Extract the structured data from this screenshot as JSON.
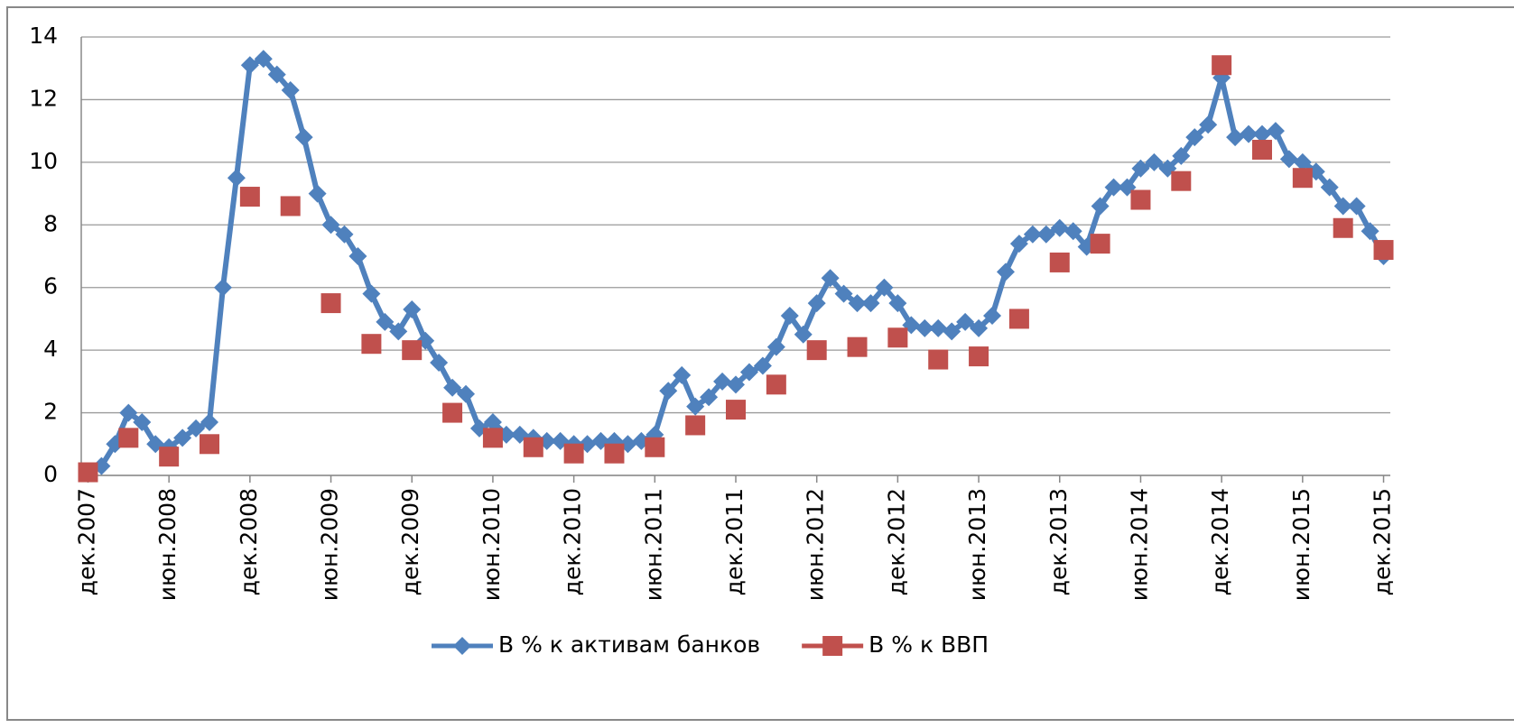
{
  "chart_data": {
    "type": "line",
    "categories": [
      "дек.2007",
      null,
      null,
      null,
      null,
      null,
      "июн.2008",
      null,
      null,
      null,
      null,
      null,
      "дек.2008",
      null,
      null,
      null,
      null,
      null,
      "июн.2009",
      null,
      null,
      null,
      null,
      null,
      "дек.2009",
      null,
      null,
      null,
      null,
      null,
      "июн.2010",
      null,
      null,
      null,
      null,
      null,
      "дек.2010",
      null,
      null,
      null,
      null,
      null,
      "июн.2011",
      null,
      null,
      null,
      null,
      null,
      "дек.2011",
      null,
      null,
      null,
      null,
      null,
      "июн.2012",
      null,
      null,
      null,
      null,
      null,
      "дек.2012",
      null,
      null,
      null,
      null,
      null,
      "июн.2013",
      null,
      null,
      null,
      null,
      null,
      "дек.2013",
      null,
      null,
      null,
      null,
      null,
      "июн.2014",
      null,
      null,
      null,
      null,
      null,
      "дек.2014",
      null,
      null,
      null,
      null,
      null,
      "июн.2015",
      null,
      null,
      null,
      null,
      null,
      "дек.2015"
    ],
    "series": [
      {
        "name": "В % к активам банков",
        "color": "#4f81bd",
        "marker": "diamond",
        "show_line": true,
        "values": [
          0.1,
          0.3,
          1.0,
          2.0,
          1.7,
          1.0,
          0.9,
          1.2,
          1.5,
          1.7,
          6.0,
          9.5,
          13.1,
          13.3,
          12.8,
          12.3,
          10.8,
          9.0,
          8.0,
          7.7,
          7.0,
          5.8,
          4.9,
          4.6,
          5.3,
          4.3,
          3.6,
          2.8,
          2.6,
          1.5,
          1.7,
          1.3,
          1.3,
          1.2,
          1.1,
          1.1,
          1.0,
          1.0,
          1.1,
          1.1,
          1.0,
          1.1,
          1.3,
          2.7,
          3.2,
          2.2,
          2.5,
          3.0,
          2.9,
          3.3,
          3.5,
          4.1,
          5.1,
          4.5,
          5.5,
          6.3,
          5.8,
          5.5,
          5.5,
          6.0,
          5.5,
          4.8,
          4.7,
          4.7,
          4.6,
          4.9,
          4.7,
          5.1,
          6.5,
          7.4,
          7.7,
          7.7,
          7.9,
          7.8,
          7.3,
          8.6,
          9.2,
          9.2,
          9.8,
          10.0,
          9.8,
          10.2,
          10.8,
          11.2,
          12.7,
          10.8,
          10.9,
          10.9,
          11.0,
          10.1,
          10.0,
          9.7,
          9.2,
          8.6,
          8.6,
          7.8,
          7.0
        ]
      },
      {
        "name": "В % к ВВП",
        "color": "#c0504d",
        "marker": "square",
        "show_line": false,
        "values": [
          0.1,
          null,
          null,
          1.2,
          null,
          null,
          0.6,
          null,
          null,
          1.0,
          null,
          null,
          8.9,
          null,
          null,
          8.6,
          null,
          null,
          5.5,
          null,
          null,
          4.2,
          null,
          null,
          4.0,
          null,
          null,
          2.0,
          null,
          null,
          1.2,
          null,
          null,
          0.9,
          null,
          null,
          0.7,
          null,
          null,
          0.7,
          null,
          null,
          0.9,
          null,
          null,
          1.6,
          null,
          null,
          2.1,
          null,
          null,
          2.9,
          null,
          null,
          4.0,
          null,
          null,
          4.1,
          null,
          null,
          4.4,
          null,
          null,
          3.7,
          null,
          null,
          3.8,
          null,
          null,
          5.0,
          null,
          null,
          6.8,
          null,
          null,
          7.4,
          null,
          null,
          8.8,
          null,
          null,
          9.4,
          null,
          null,
          13.1,
          null,
          null,
          10.4,
          null,
          null,
          9.5,
          null,
          null,
          7.9,
          null,
          null,
          7.2
        ]
      }
    ],
    "ylim": [
      0,
      14
    ],
    "yticks": [
      0,
      2,
      4,
      6,
      8,
      10,
      12,
      14
    ],
    "grid": true,
    "legend": "bottom"
  }
}
